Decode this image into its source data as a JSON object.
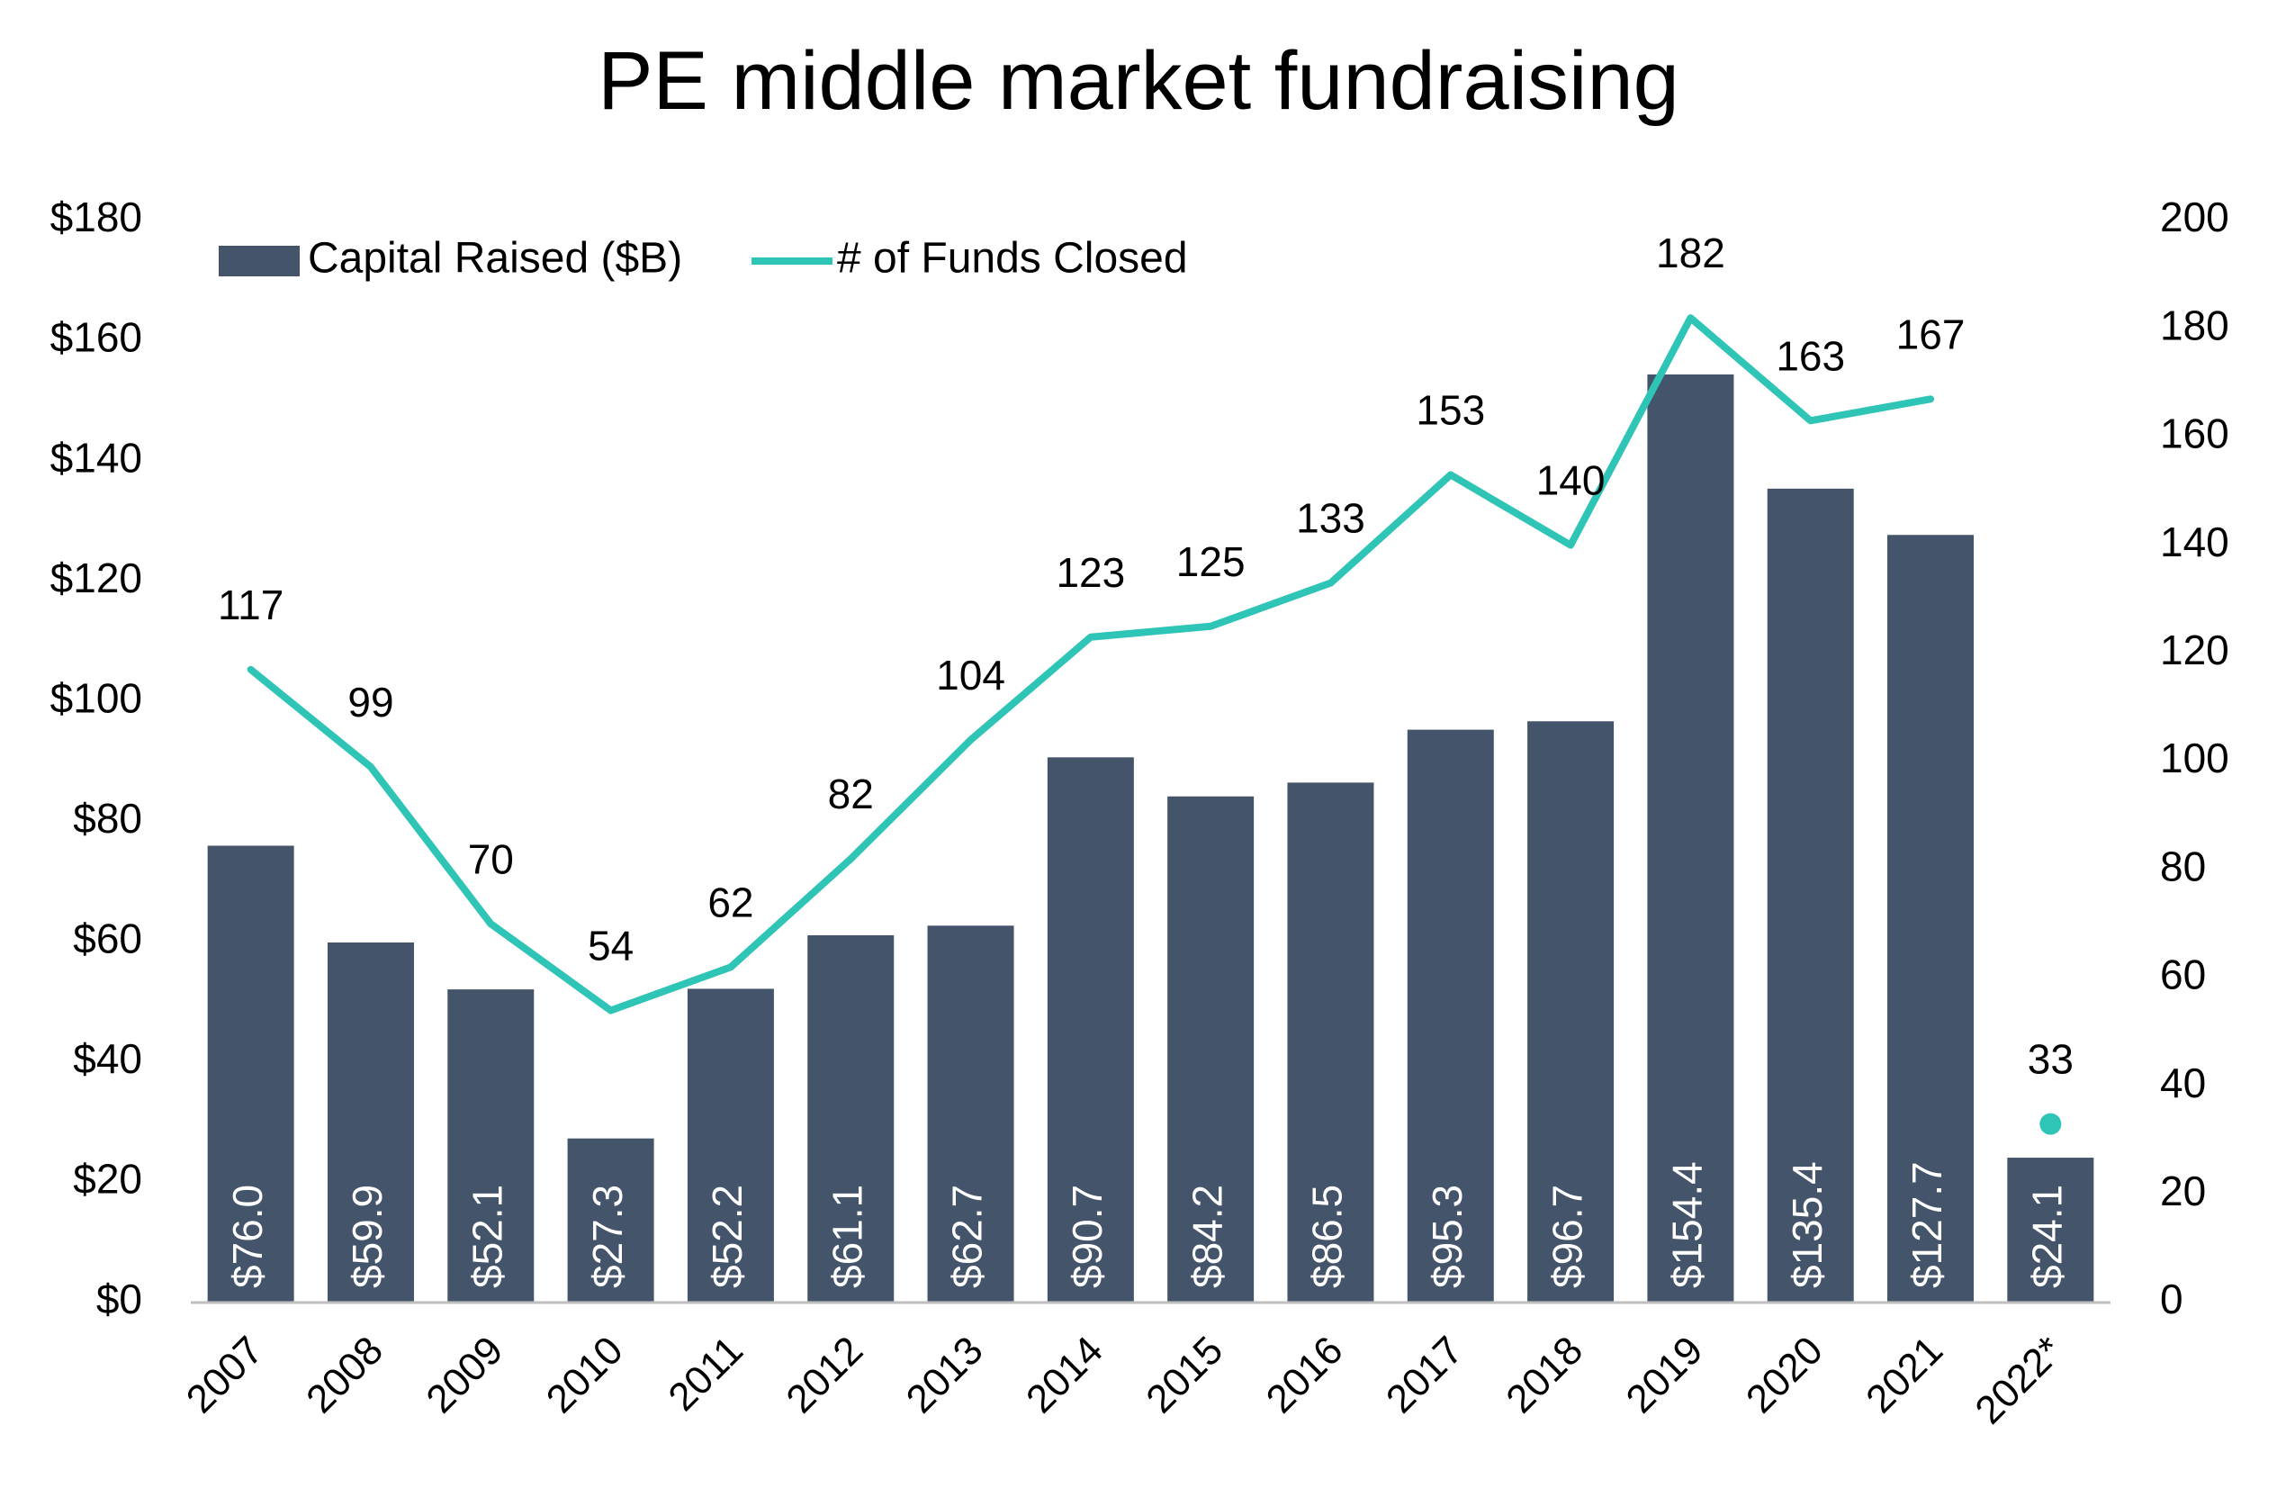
{
  "chart_data": {
    "type": "bar",
    "title": "PE middle market fundraising",
    "categories": [
      "2007",
      "2008",
      "2009",
      "2010",
      "2011",
      "2012",
      "2013",
      "2014",
      "2015",
      "2016",
      "2017",
      "2018",
      "2019",
      "2020",
      "2021",
      "2022*"
    ],
    "series": [
      {
        "name": "Capital Raised ($B)",
        "type": "bar",
        "axis": "left",
        "color": "#44546A",
        "values": [
          76.0,
          59.9,
          52.1,
          27.3,
          52.2,
          61.1,
          62.7,
          90.7,
          84.2,
          86.5,
          95.3,
          96.7,
          154.4,
          135.4,
          127.7,
          24.1
        ],
        "labels": [
          "$76.0",
          "$59.9",
          "$52.1",
          "$27.3",
          "$52.2",
          "$61.1",
          "$62.7",
          "$90.7",
          "$84.2",
          "$86.5",
          "$95.3",
          "$96.7",
          "$154.4",
          "$135.4",
          "$127.7",
          "$24.1"
        ]
      },
      {
        "name": "# of Funds Closed",
        "type": "line",
        "axis": "right",
        "color": "#2EC4B6",
        "values": [
          117,
          99,
          70,
          54,
          62,
          82,
          104,
          123,
          125,
          133,
          153,
          140,
          182,
          163,
          167,
          33
        ],
        "labels": [
          "117",
          "99",
          "70",
          "54",
          "62",
          "82",
          "104",
          "123",
          "125",
          "133",
          "153",
          "140",
          "182",
          "163",
          "167",
          "33"
        ],
        "last_point_marker_only": true
      }
    ],
    "y_left": {
      "min": 0,
      "max": 180,
      "ticks": [
        "$0",
        "$20",
        "$40",
        "$60",
        "$80",
        "$100",
        "$120",
        "$140",
        "$160",
        "$180"
      ]
    },
    "y_right": {
      "min": 0,
      "max": 200,
      "ticks": [
        "0",
        "20",
        "40",
        "60",
        "80",
        "100",
        "120",
        "140",
        "160",
        "180",
        "200"
      ]
    },
    "grid": false,
    "legend": "top-left"
  }
}
